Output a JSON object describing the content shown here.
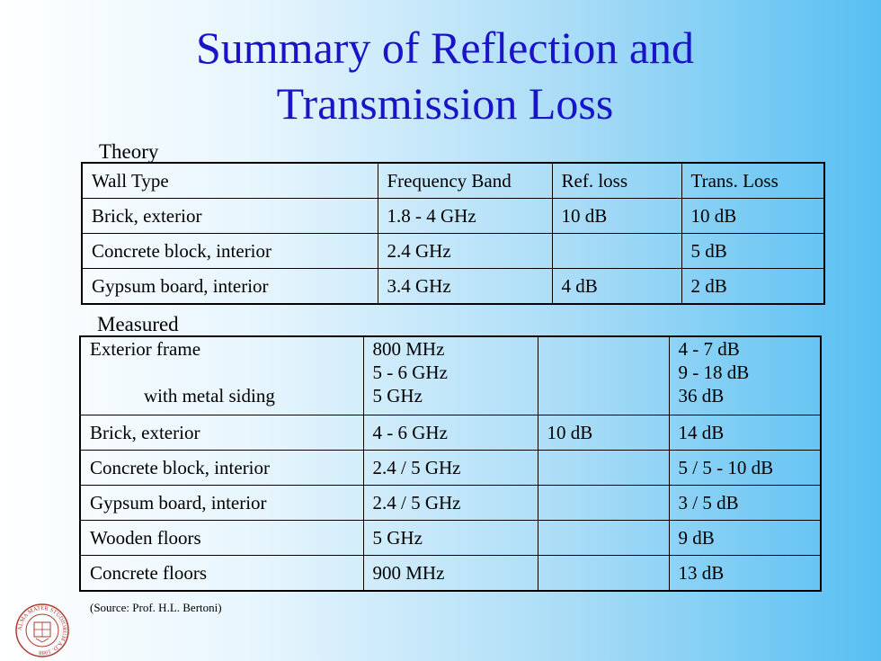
{
  "title_line1": "Summary of Reflection and",
  "title_line2": "Transmission Loss",
  "theory": {
    "label": "Theory",
    "headers": [
      "Wall Type",
      "Frequency Band",
      "Ref. loss",
      "Trans. Loss"
    ],
    "rows": [
      [
        "Brick, exterior",
        "1.8 - 4 GHz",
        "10 dB",
        "10 dB"
      ],
      [
        "Concrete block, interior",
        "2.4 GHz",
        "",
        "5 dB"
      ],
      [
        "Gypsum board, interior",
        "3.4 GHz",
        "4 dB",
        "2 dB"
      ]
    ]
  },
  "measured": {
    "label": "Measured",
    "exterior_frame": {
      "wall_line1": "Exterior frame",
      "wall_line2": "with metal siding",
      "freq": [
        "800 MHz",
        "5 - 6 GHz",
        "5 GHz"
      ],
      "ref": "",
      "trans": [
        "4 - 7 dB",
        "9 - 18 dB",
        "36 dB"
      ]
    },
    "rows": [
      [
        "Brick, exterior",
        "4 - 6 GHz",
        "10 dB",
        "14 dB"
      ],
      [
        "Concrete block, interior",
        "2.4 / 5 GHz",
        "",
        "5 / 5 - 10 dB"
      ],
      [
        "Gypsum board, interior",
        "2.4 / 5 GHz",
        "",
        "3 / 5 dB"
      ],
      [
        "Wooden floors",
        "5 GHz",
        "",
        "9 dB"
      ],
      [
        "Concrete floors",
        "900 MHz",
        "",
        "13 dB"
      ]
    ]
  },
  "source": "(Source: Prof. H.L. Bertoni)",
  "seal": {
    "icon": "university-seal-icon",
    "text": "ALMA MATER STUDIORUM A.D. 1088",
    "color": "#b03a2e"
  },
  "colors": {
    "title": "#1a14c8",
    "bg_right": "#57bff2"
  }
}
